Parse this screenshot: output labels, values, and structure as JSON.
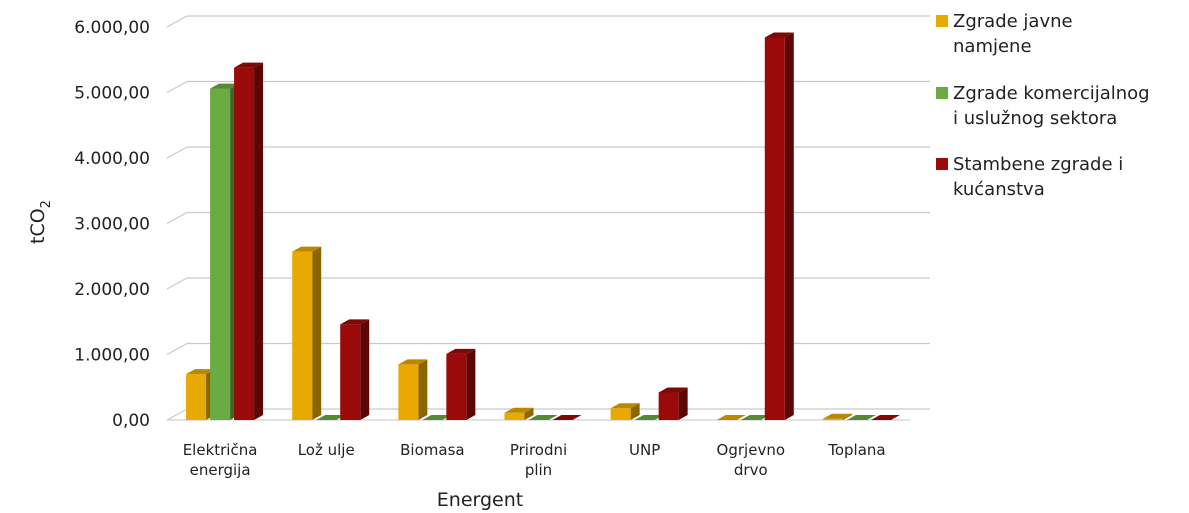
{
  "chart_data": {
    "type": "bar",
    "xlabel": "Energent",
    "ylabel": "tCO",
    "ylabel_subscript": "2",
    "ylim": [
      0,
      6000
    ],
    "yticks": [
      "0,00",
      "1.000,00",
      "2.000,00",
      "3.000,00",
      "4.000,00",
      "5.000,00",
      "6.000,00"
    ],
    "grid": true,
    "legend_position": "right",
    "categories": [
      [
        "Električna",
        "energija"
      ],
      [
        "Lož ulje"
      ],
      [
        "Biomasa"
      ],
      [
        "Prirodni",
        "plin"
      ],
      [
        "UNP"
      ],
      [
        "Ogrjevno",
        "drvo"
      ],
      [
        "Toplana"
      ]
    ],
    "series": [
      {
        "name": "Zgrade javne namjene",
        "legend_lines": [
          "Zgrade javne",
          "namjene"
        ],
        "color": "#e8a900",
        "values": [
          700,
          2570,
          850,
          110,
          180,
          0,
          20
        ]
      },
      {
        "name": "Zgrade komercijalnog i uslužnog sektora",
        "legend_lines": [
          "Zgrade komercijalnog",
          "i uslužnog sektora"
        ],
        "color": "#6aab44",
        "values": [
          5060,
          0,
          0,
          0,
          0,
          0,
          0
        ]
      },
      {
        "name": "Stambene zgrade i kućanstva",
        "legend_lines": [
          "Stambene zgrade i",
          "kućanstva"
        ],
        "color": "#9b0a0a",
        "values": [
          5380,
          1460,
          1010,
          0,
          420,
          5840,
          0
        ]
      }
    ]
  }
}
